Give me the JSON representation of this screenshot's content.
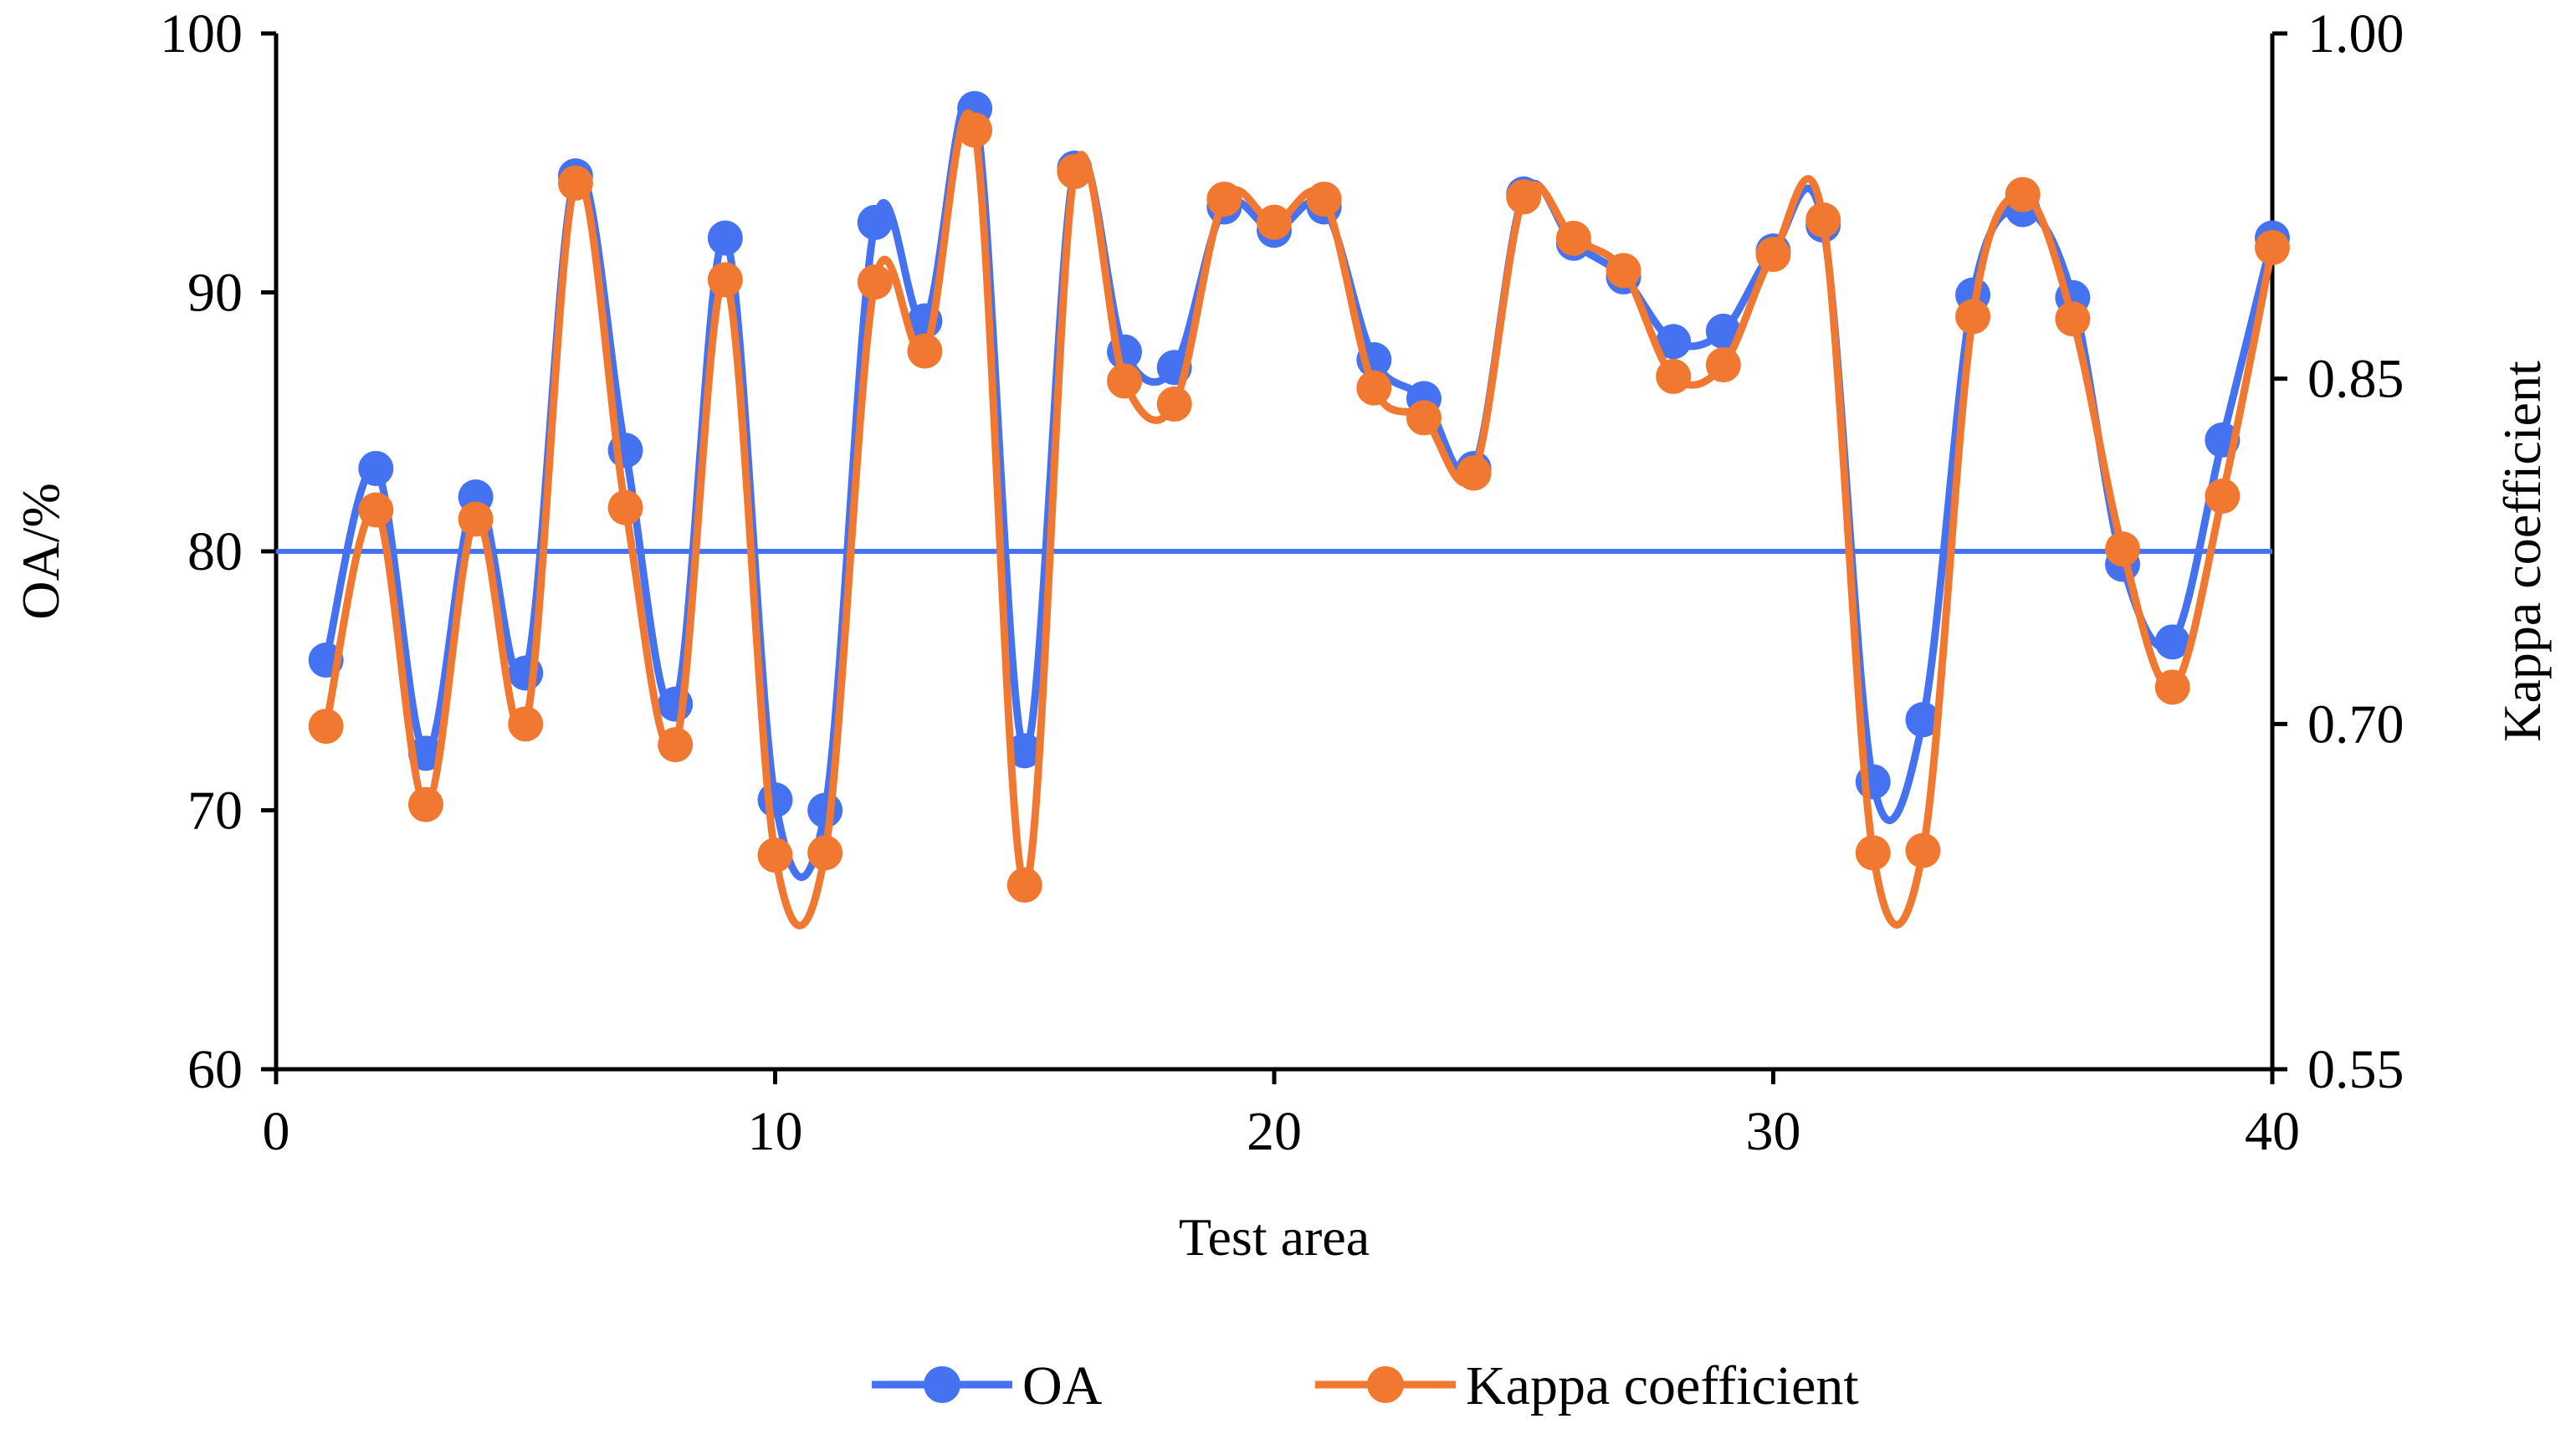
{
  "chart_data": {
    "type": "line",
    "title": "",
    "xlabel": "Test area",
    "ylabel_left": "OA/%",
    "ylabel_right": "Kappa coefficient",
    "xlim": [
      0,
      40
    ],
    "ylim_left": [
      60,
      100
    ],
    "ylim_right": [
      0.55,
      1.0
    ],
    "x_ticks": [
      0,
      10,
      20,
      30,
      40
    ],
    "x_tick_labels": [
      "0",
      "10",
      "20",
      "30",
      "40"
    ],
    "y_left_ticks": [
      60,
      70,
      80,
      90,
      100
    ],
    "y_left_tick_labels": [
      "60",
      "70",
      "80",
      "90",
      "100"
    ],
    "y_right_ticks": [
      0.55,
      0.7,
      0.85,
      1.0
    ],
    "y_right_tick_labels": [
      "0.55",
      "0.70",
      "0.85",
      "1.00"
    ],
    "x": [
      1,
      2,
      3,
      4,
      5,
      6,
      7,
      8,
      9,
      10,
      11,
      12,
      13,
      14,
      15,
      16,
      17,
      18,
      19,
      20,
      21,
      22,
      23,
      24,
      25,
      26,
      27,
      28,
      29,
      30,
      31,
      32,
      33,
      34,
      35,
      36,
      37,
      38,
      39,
      40
    ],
    "series": [
      {
        "name": "OA",
        "axis": "left",
        "color": "#4472F0",
        "values": [
          75.8,
          83.2,
          72.2,
          82.1,
          75.3,
          94.5,
          83.9,
          74.1,
          92.1,
          70.4,
          70.0,
          92.7,
          88.9,
          97.1,
          72.3,
          94.8,
          87.7,
          87.1,
          93.3,
          92.4,
          93.3,
          87.4,
          85.9,
          83.2,
          93.8,
          91.9,
          90.6,
          88.1,
          88.5,
          91.6,
          92.6,
          71.1,
          73.5,
          89.9,
          93.2,
          89.8,
          79.5,
          76.5,
          84.3,
          92.1
        ]
      },
      {
        "name": "Kappa coefficient",
        "axis": "right",
        "color": "#F07830",
        "values": [
          0.699,
          0.793,
          0.665,
          0.789,
          0.7,
          0.935,
          0.794,
          0.691,
          0.893,
          0.643,
          0.644,
          0.892,
          0.862,
          0.958,
          0.63,
          0.94,
          0.849,
          0.839,
          0.928,
          0.918,
          0.928,
          0.846,
          0.833,
          0.809,
          0.929,
          0.911,
          0.897,
          0.851,
          0.856,
          0.904,
          0.919,
          0.644,
          0.645,
          0.877,
          0.93,
          0.876,
          0.776,
          0.716,
          0.799,
          0.907
        ]
      }
    ],
    "reference_line": {
      "axis": "left",
      "value": 80,
      "color": "#4472F0"
    },
    "legend": {
      "position": "bottom-center"
    }
  }
}
